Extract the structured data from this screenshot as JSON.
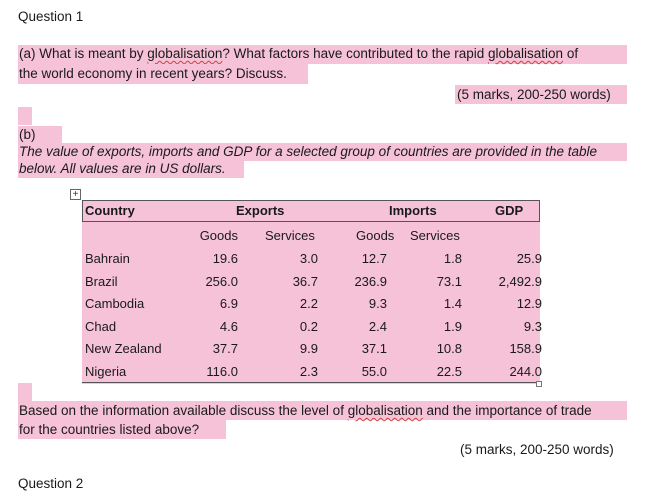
{
  "question_title": "Question 1",
  "part_a": {
    "line1_prefix": "(a) What is meant by ",
    "line1_term": "globalisation",
    "line1_mid": "? What factors have contributed to the rapid ",
    "line1_term2": "globalisation",
    "line1_suffix": " of",
    "line2": "the world economy in recent years? Discuss.",
    "marks": "(5 marks, 200-250 words)"
  },
  "part_b": {
    "label": "(b)",
    "intro_line1": "The value of exports, imports and GDP for a selected group of countries are provided in the table",
    "intro_line2": "below. All values are in US dollars."
  },
  "table": {
    "headers": {
      "country": "Country",
      "exports": "Exports",
      "imports": "Imports",
      "gdp": "GDP"
    },
    "subheaders": {
      "exp_goods": "Goods",
      "exp_services": "Services",
      "imp_goods": "Goods",
      "imp_services": "Services"
    },
    "rows": [
      {
        "country": "Bahrain",
        "exp_goods": "19.6",
        "exp_services": "3.0",
        "imp_goods": "12.7",
        "imp_services": "1.8",
        "gdp": "25.9"
      },
      {
        "country": "Brazil",
        "exp_goods": "256.0",
        "exp_services": "36.7",
        "imp_goods": "236.9",
        "imp_services": "73.1",
        "gdp": "2,492.9"
      },
      {
        "country": "Cambodia",
        "exp_goods": "6.9",
        "exp_services": "2.2",
        "imp_goods": "9.3",
        "imp_services": "1.4",
        "gdp": "12.9"
      },
      {
        "country": "Chad",
        "exp_goods": "4.6",
        "exp_services": "0.2",
        "imp_goods": "2.4",
        "imp_services": "1.9",
        "gdp": "9.3"
      },
      {
        "country": "New Zealand",
        "exp_goods": "37.7",
        "exp_services": "9.9",
        "imp_goods": "37.1",
        "imp_services": "10.8",
        "gdp": "158.9"
      },
      {
        "country": "Nigeria",
        "exp_goods": "116.0",
        "exp_services": "2.3",
        "imp_goods": "55.0",
        "imp_services": "22.5",
        "gdp": "244.0"
      }
    ]
  },
  "part_c": {
    "line1_prefix": "Based on the information available discuss the level of ",
    "line1_term": "globalisation",
    "line1_suffix": " and the importance of trade",
    "line2": "for the countries listed above?",
    "marks": "(5 marks, 200-250 words)"
  },
  "next_question_cut": "Question 2",
  "colors": {
    "highlight": "#f5c2d7",
    "spelling_underline": "#d04040"
  }
}
